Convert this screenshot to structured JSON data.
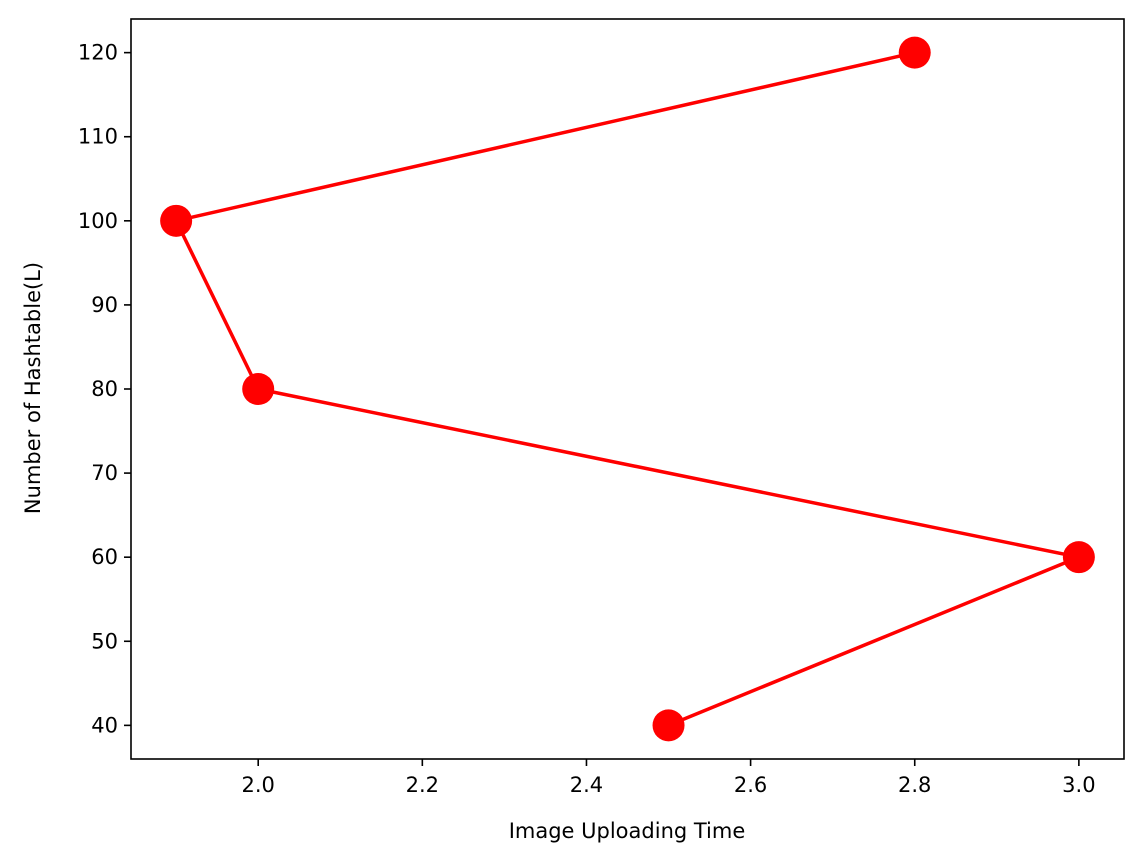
{
  "chart_data": {
    "type": "line",
    "title": "",
    "xlabel": "Image Uploading Time",
    "ylabel": "Number of Hashtable(L)",
    "xlim": [
      1.845,
      3.055
    ],
    "ylim": [
      36,
      124
    ],
    "xticks": [
      2.0,
      2.2,
      2.4,
      2.6,
      2.8,
      3.0
    ],
    "xtick_labels": [
      "2.0",
      "2.2",
      "2.4",
      "2.6",
      "2.8",
      "3.0"
    ],
    "yticks": [
      40,
      50,
      60,
      70,
      80,
      90,
      100,
      110,
      120
    ],
    "ytick_labels": [
      "40",
      "50",
      "60",
      "70",
      "80",
      "90",
      "100",
      "110",
      "120"
    ],
    "grid": false,
    "series": [
      {
        "color": "#ff0000",
        "marker": "circle",
        "points": [
          {
            "x": 2.8,
            "y": 120
          },
          {
            "x": 1.9,
            "y": 100
          },
          {
            "x": 2.0,
            "y": 80
          },
          {
            "x": 3.0,
            "y": 60
          },
          {
            "x": 2.5,
            "y": 40
          }
        ]
      }
    ]
  }
}
